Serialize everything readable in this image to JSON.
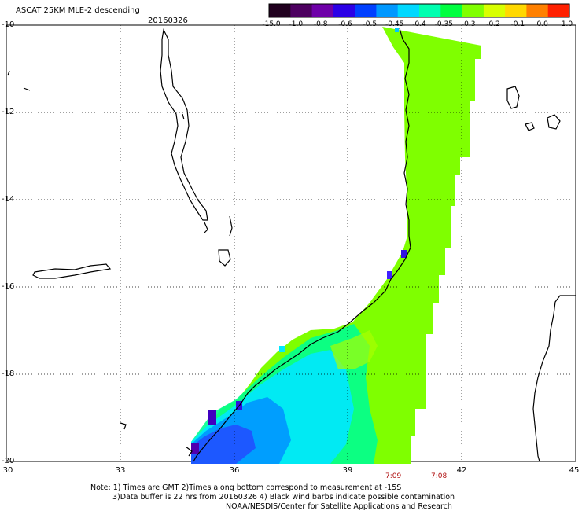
{
  "header": {
    "title": "ASCAT 25KM MLE-2 descending",
    "date": "20160326"
  },
  "colorbar": {
    "labels": [
      "-15.0",
      "-1.0",
      "-0.8",
      "-0.6",
      "-0.5",
      "-0.45",
      "-0.4",
      "-0.35",
      "-0.3",
      "-0.2",
      "-0.1",
      "0.0",
      "1.0"
    ],
    "colors": [
      "#20001e",
      "#4d0060",
      "#6e00a8",
      "#2b00e6",
      "#0040ff",
      "#0098ff",
      "#00d8ff",
      "#00ffb0",
      "#00ff40",
      "#80ff00",
      "#d8ff00",
      "#ffd800",
      "#ff8000",
      "#ff2000"
    ]
  },
  "map": {
    "lat_labels": [
      "-10",
      "-12",
      "-14",
      "-16",
      "-18",
      "-20"
    ],
    "lon_labels": [
      "30",
      "33",
      "36",
      "39",
      "42",
      "45"
    ],
    "times": [
      "7:09",
      "7:08"
    ]
  },
  "notes": {
    "line1": "Note: 1) Times are GMT 2)Times along bottom correspond to measurement at -15S",
    "line2": "3)Data buffer is 22 hrs from 20160326 4) Black wind barbs indicate possible contamination",
    "line3": "NOAA/NESDIS/Center for Satellite Applications and Research"
  }
}
